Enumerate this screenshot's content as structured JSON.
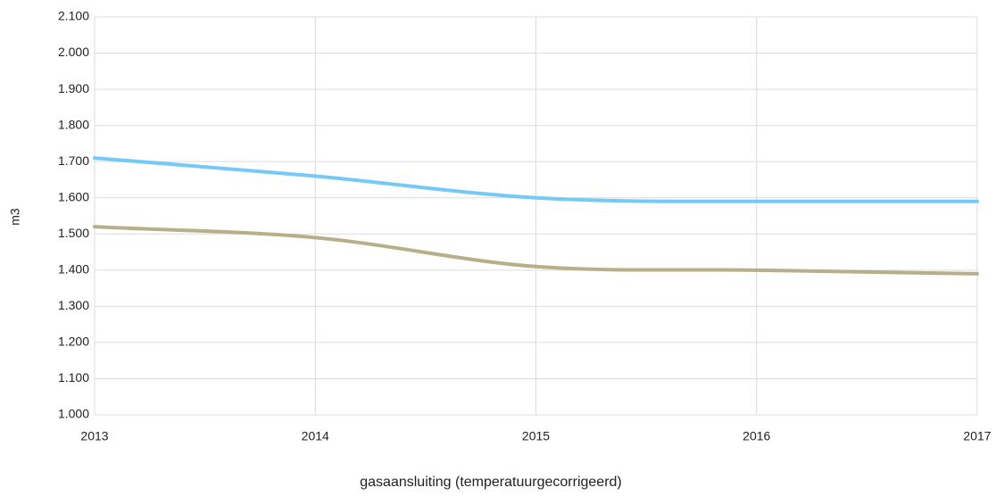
{
  "chart_data": {
    "type": "line",
    "x": [
      2013,
      2014,
      2015,
      2016,
      2017
    ],
    "series": [
      {
        "color": "#74c9f7",
        "values": [
          1710,
          1660,
          1600,
          1590,
          1590
        ]
      },
      {
        "color": "#b7ae8a",
        "values": [
          1520,
          1490,
          1410,
          1400,
          1390
        ]
      }
    ],
    "xlim": [
      2013,
      2017
    ],
    "xticks": [
      2013,
      2014,
      2015,
      2016,
      2017
    ],
    "ylim": [
      1000,
      2100
    ],
    "yticks": [
      {
        "value": 1000,
        "label": "1.000"
      },
      {
        "value": 1100,
        "label": "1.100"
      },
      {
        "value": 1200,
        "label": "1.200"
      },
      {
        "value": 1300,
        "label": "1.300"
      },
      {
        "value": 1400,
        "label": "1.400"
      },
      {
        "value": 1500,
        "label": "1.500"
      },
      {
        "value": 1600,
        "label": "1.600"
      },
      {
        "value": 1700,
        "label": "1.700"
      },
      {
        "value": 1800,
        "label": "1.800"
      },
      {
        "value": 1900,
        "label": "1.900"
      },
      {
        "value": 2000,
        "label": "2.000"
      },
      {
        "value": 2100,
        "label": "2.100"
      }
    ],
    "xlabel": "gasaansluiting (temperatuurgecorrigeerd)",
    "ylabel": "m3",
    "grid": true
  }
}
